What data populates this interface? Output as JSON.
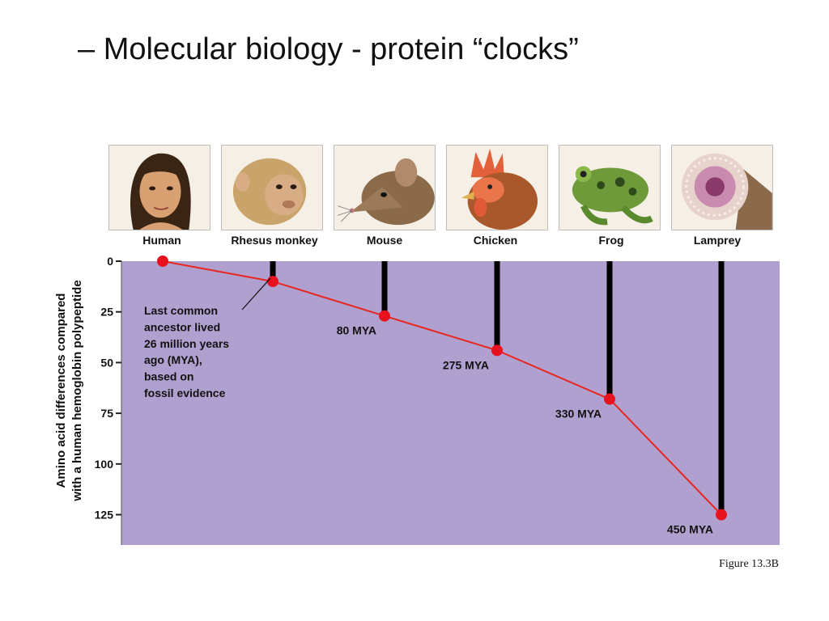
{
  "slide": {
    "title": "– Molecular biology - protein “clocks”",
    "figure_caption": "Figure 13.3B"
  },
  "species_images": [
    {
      "name": "Human",
      "icon": "human-face-illustration"
    },
    {
      "name": "Rhesus monkey",
      "icon": "rhesus-monkey-illustration"
    },
    {
      "name": "Mouse",
      "icon": "mouse-illustration"
    },
    {
      "name": "Chicken",
      "icon": "chicken-illustration"
    },
    {
      "name": "Frog",
      "icon": "frog-illustration"
    },
    {
      "name": "Lamprey",
      "icon": "lamprey-mouth-illustration"
    }
  ],
  "chart_data": {
    "type": "line",
    "title": "",
    "ylabel": "Amino acid differences compared with a human hemoglobin polypeptide",
    "xlabel": "",
    "ylim": [
      0,
      140
    ],
    "y_ticks": [
      0,
      25,
      50,
      75,
      100,
      125
    ],
    "categories": [
      "Human",
      "Rhesus monkey",
      "Mouse",
      "Chicken",
      "Frog",
      "Lamprey"
    ],
    "series": [
      {
        "values": [
          0,
          10,
          27,
          44,
          68,
          125
        ]
      }
    ],
    "point_labels": [
      "",
      "",
      "80 MYA",
      "275 MYA",
      "330 MYA",
      "450 MYA"
    ],
    "annotation": {
      "target": "Rhesus monkey",
      "lines": [
        "Last common",
        "ancestor lived",
        "26 million years",
        "ago (MYA),",
        "based on",
        "fossil evidence"
      ]
    },
    "colors": {
      "plot_background": "#b0a0d0",
      "line": "#e8261e",
      "point": "#e8121e",
      "branch": "#000000"
    },
    "grid": false
  }
}
